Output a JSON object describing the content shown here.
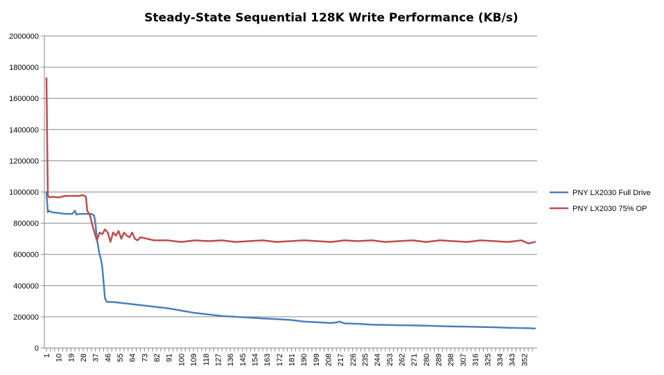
{
  "chart_data": {
    "type": "line",
    "title": "Steady-State Sequential 128K Write Performance (KB/s)",
    "xlabel": "",
    "ylabel": "",
    "ylim": [
      0,
      2000000
    ],
    "y_ticks": [
      "0",
      "200000",
      "400000",
      "600000",
      "800000",
      "1000000",
      "1200000",
      "1400000",
      "1600000",
      "1800000",
      "2000000"
    ],
    "x_range": [
      1,
      360
    ],
    "x_ticks": [
      "1",
      "10",
      "19",
      "28",
      "37",
      "46",
      "55",
      "64",
      "73",
      "82",
      "91",
      "100",
      "109",
      "118",
      "127",
      "136",
      "145",
      "154",
      "163",
      "172",
      "181",
      "190",
      "199",
      "208",
      "217",
      "226",
      "235",
      "244",
      "253",
      "262",
      "271",
      "280",
      "289",
      "298",
      "307",
      "316",
      "325",
      "334",
      "343",
      "352"
    ],
    "grid": "horizontal",
    "legend_position": "right",
    "series": [
      {
        "name": "PNY LX2030 Full Drive",
        "color": "#4A7EBB",
        "x": [
          1,
          2,
          3,
          5,
          10,
          15,
          20,
          22,
          23,
          25,
          30,
          34,
          36,
          37,
          38,
          39,
          40,
          41,
          42,
          43,
          44,
          45,
          46,
          50,
          55,
          60,
          65,
          70,
          80,
          90,
          100,
          110,
          120,
          130,
          140,
          150,
          160,
          170,
          180,
          190,
          200,
          210,
          215,
          216,
          220,
          230,
          240,
          250,
          260,
          270,
          280,
          290,
          300,
          310,
          320,
          330,
          340,
          350,
          355,
          360
        ],
        "y": [
          1000000,
          870000,
          880000,
          870000,
          865000,
          860000,
          860000,
          880000,
          855000,
          860000,
          860000,
          860000,
          850000,
          800000,
          700000,
          650000,
          600000,
          570000,
          520000,
          420000,
          320000,
          300000,
          295000,
          295000,
          290000,
          285000,
          280000,
          275000,
          265000,
          255000,
          240000,
          225000,
          215000,
          205000,
          200000,
          195000,
          190000,
          185000,
          180000,
          170000,
          165000,
          160000,
          165000,
          170000,
          158000,
          155000,
          150000,
          148000,
          146000,
          145000,
          143000,
          140000,
          138000,
          137000,
          135000,
          133000,
          130000,
          128000,
          127000,
          125000
        ]
      },
      {
        "name": "PNY LX2030 75% OP",
        "color": "#BE4B48",
        "x": [
          1,
          2,
          3,
          5,
          10,
          15,
          20,
          25,
          28,
          30,
          31,
          33,
          35,
          37,
          38,
          40,
          42,
          44,
          46,
          48,
          50,
          52,
          54,
          56,
          58,
          60,
          62,
          64,
          66,
          68,
          70,
          75,
          80,
          90,
          100,
          110,
          120,
          130,
          140,
          150,
          160,
          170,
          180,
          190,
          200,
          210,
          220,
          230,
          240,
          250,
          260,
          270,
          280,
          290,
          300,
          310,
          320,
          330,
          340,
          350,
          355,
          360
        ],
        "y": [
          1730000,
          980000,
          965000,
          970000,
          965000,
          975000,
          975000,
          975000,
          980000,
          970000,
          880000,
          850000,
          780000,
          720000,
          690000,
          740000,
          730000,
          760000,
          740000,
          680000,
          740000,
          720000,
          750000,
          700000,
          740000,
          720000,
          710000,
          740000,
          700000,
          690000,
          710000,
          700000,
          690000,
          690000,
          680000,
          690000,
          685000,
          690000,
          680000,
          685000,
          690000,
          680000,
          685000,
          690000,
          685000,
          680000,
          690000,
          685000,
          690000,
          680000,
          685000,
          690000,
          680000,
          690000,
          685000,
          680000,
          690000,
          685000,
          680000,
          690000,
          670000,
          680000
        ]
      }
    ]
  }
}
